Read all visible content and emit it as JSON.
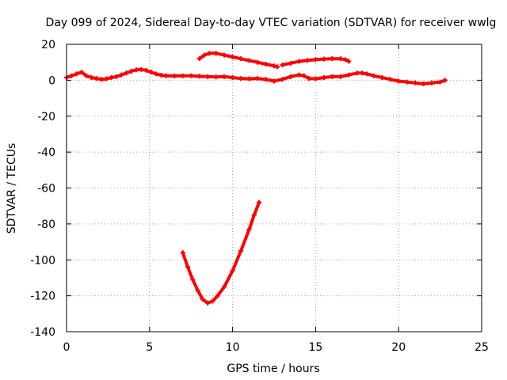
{
  "chart_data": {
    "type": "scatter",
    "title": "Day 099 of 2024, Sidereal Day-to-day VTEC variation (SDTVAR) for receiver wwlg",
    "xlabel": "GPS time / hours",
    "ylabel": "SDTVAR / TECUs",
    "xlim": [
      0,
      25
    ],
    "ylim": [
      -140,
      20
    ],
    "xticks": [
      0,
      5,
      10,
      15,
      20,
      25
    ],
    "yticks": [
      -140,
      -120,
      -100,
      -80,
      -60,
      -40,
      -20,
      0,
      20
    ],
    "grid": true,
    "color": "#ff0000",
    "series": [
      {
        "name": "main-trace",
        "points": [
          [
            0.0,
            1.5
          ],
          [
            0.3,
            2.5
          ],
          [
            0.6,
            3.5
          ],
          [
            0.9,
            4.5
          ],
          [
            1.2,
            2.5
          ],
          [
            1.5,
            1.5
          ],
          [
            1.8,
            1.0
          ],
          [
            2.1,
            0.5
          ],
          [
            2.4,
            0.8
          ],
          [
            2.7,
            1.5
          ],
          [
            3.0,
            2.0
          ],
          [
            3.3,
            3.0
          ],
          [
            3.6,
            4.0
          ],
          [
            3.9,
            5.0
          ],
          [
            4.2,
            5.8
          ],
          [
            4.5,
            6.0
          ],
          [
            4.8,
            5.5
          ],
          [
            5.1,
            4.5
          ],
          [
            5.4,
            3.5
          ],
          [
            5.7,
            2.8
          ],
          [
            6.0,
            2.5
          ],
          [
            6.5,
            2.4
          ],
          [
            7.0,
            2.5
          ],
          [
            7.5,
            2.5
          ],
          [
            8.0,
            2.2
          ],
          [
            8.5,
            2.0
          ],
          [
            9.0,
            1.8
          ],
          [
            9.5,
            2.0
          ],
          [
            10.0,
            1.5
          ],
          [
            10.5,
            1.0
          ],
          [
            11.0,
            0.8
          ],
          [
            11.5,
            1.0
          ],
          [
            12.0,
            0.5
          ],
          [
            12.5,
            -0.5
          ],
          [
            13.0,
            0.5
          ],
          [
            13.5,
            2.0
          ],
          [
            14.0,
            3.0
          ],
          [
            14.3,
            2.5
          ],
          [
            14.6,
            1.0
          ],
          [
            15.0,
            0.8
          ],
          [
            15.5,
            1.5
          ],
          [
            16.0,
            2.0
          ],
          [
            16.5,
            2.0
          ],
          [
            17.0,
            3.0
          ],
          [
            17.5,
            4.0
          ],
          [
            17.8,
            4.0
          ],
          [
            18.1,
            3.5
          ],
          [
            18.5,
            2.5
          ],
          [
            19.0,
            1.5
          ],
          [
            19.5,
            0.5
          ],
          [
            20.0,
            -0.5
          ],
          [
            20.5,
            -1.0
          ],
          [
            21.0,
            -1.5
          ],
          [
            21.5,
            -2.0
          ],
          [
            22.0,
            -1.5
          ],
          [
            22.5,
            -1.0
          ],
          [
            22.8,
            0.0
          ]
        ]
      },
      {
        "name": "upper-arc-1",
        "points": [
          [
            8.0,
            12.0
          ],
          [
            8.3,
            14.0
          ],
          [
            8.6,
            15.0
          ],
          [
            9.0,
            15.0
          ],
          [
            9.5,
            14.0
          ],
          [
            10.0,
            13.0
          ],
          [
            10.5,
            12.0
          ],
          [
            11.0,
            11.0
          ],
          [
            11.5,
            10.0
          ],
          [
            12.0,
            9.0
          ],
          [
            12.5,
            8.0
          ],
          [
            12.7,
            7.5
          ]
        ]
      },
      {
        "name": "upper-arc-2",
        "points": [
          [
            13.0,
            8.5
          ],
          [
            13.5,
            9.5
          ],
          [
            14.0,
            10.5
          ],
          [
            14.5,
            11.0
          ],
          [
            15.0,
            11.5
          ],
          [
            15.5,
            11.8
          ],
          [
            16.0,
            12.0
          ],
          [
            16.5,
            12.0
          ],
          [
            16.8,
            11.5
          ],
          [
            17.0,
            10.5
          ]
        ]
      },
      {
        "name": "dip-curve",
        "points": [
          [
            7.0,
            -96.0
          ],
          [
            7.3,
            -104.0
          ],
          [
            7.6,
            -111.0
          ],
          [
            7.9,
            -117.0
          ],
          [
            8.2,
            -122.0
          ],
          [
            8.5,
            -124.0
          ],
          [
            8.8,
            -123.0
          ],
          [
            9.1,
            -120.0
          ],
          [
            9.5,
            -115.0
          ],
          [
            10.0,
            -106.0
          ],
          [
            10.5,
            -95.0
          ],
          [
            11.0,
            -83.0
          ],
          [
            11.3,
            -75.0
          ],
          [
            11.6,
            -68.0
          ]
        ]
      }
    ]
  }
}
